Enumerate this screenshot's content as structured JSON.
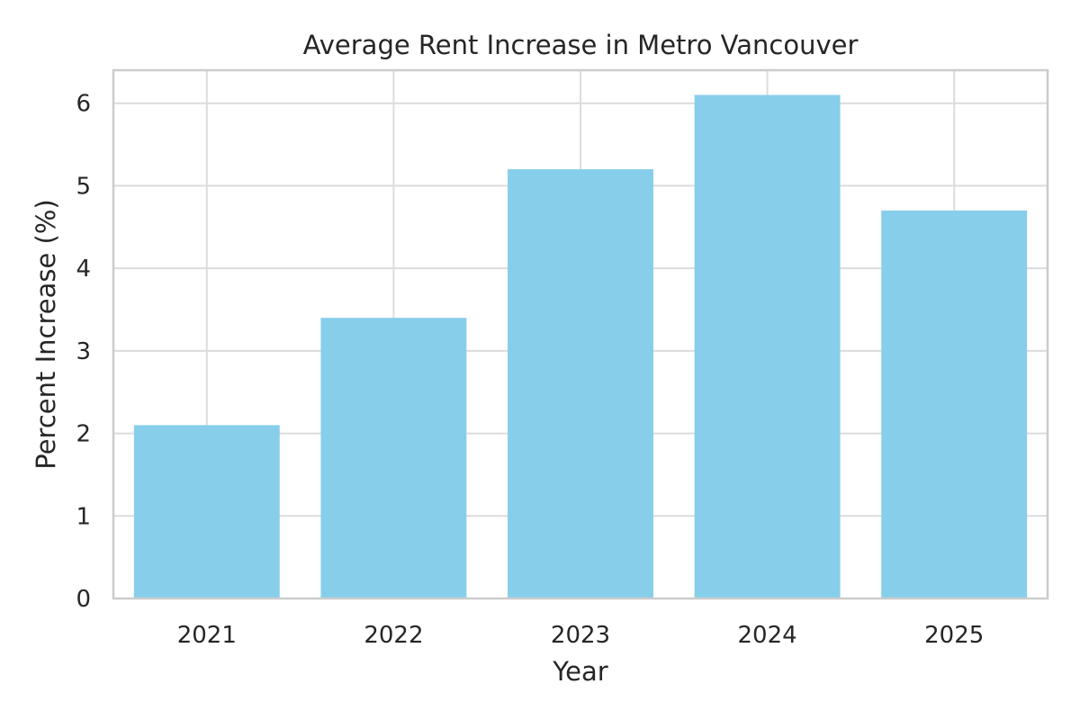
{
  "chart_data": {
    "type": "bar",
    "title": "Average Rent Increase in Metro Vancouver",
    "xlabel": "Year",
    "ylabel": "Percent Increase (%)",
    "categories": [
      "2021",
      "2022",
      "2023",
      "2024",
      "2025"
    ],
    "values": [
      2.1,
      3.4,
      5.2,
      6.1,
      4.7
    ],
    "ylim": [
      0,
      6.4
    ],
    "yticks": [
      0,
      1,
      2,
      3,
      4,
      5,
      6
    ],
    "grid": true,
    "bar_color": "#87ceeb",
    "grid_color": "#dcdcdc",
    "frame_color": "#cccccc",
    "text_color": "#262626"
  }
}
